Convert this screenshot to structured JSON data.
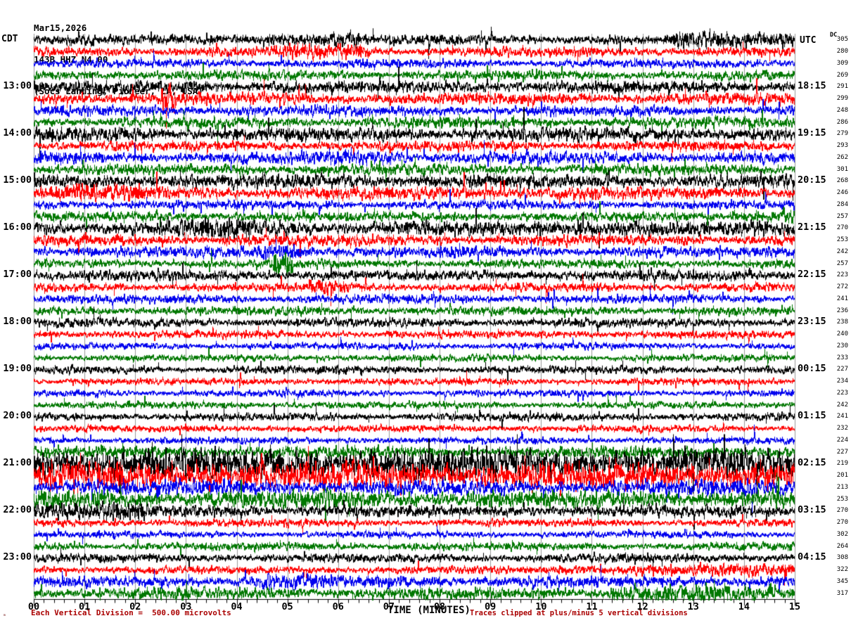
{
  "header": {
    "date": "Mar15,2026",
    "station": "143B HHZ N4 00",
    "location": "(Socs Landing, Pioneer, LA, USA)"
  },
  "timezones": {
    "left": "CDT",
    "right": "UTC"
  },
  "dc_column_header": "DC",
  "axis": {
    "title": "TIME (MINUTES)",
    "ticks": [
      "00",
      "01",
      "02",
      "03",
      "04",
      "05",
      "06",
      "07",
      "08",
      "09",
      "10",
      "11",
      "12",
      "13",
      "14",
      "15"
    ]
  },
  "footer": {
    "left_note": "Each Vertical Division =  500.00 microvolts",
    "right_note": "Traces clipped at plus/minus 5 vertical divisions",
    "corner_mark": "ₘ"
  },
  "colors": {
    "trace_cycle": [
      "#000000",
      "#ff0000",
      "#0000ee",
      "#007700"
    ],
    "grid": "#999999",
    "axis": "#000000",
    "note_red": "#aa0000",
    "background": "#ffffff"
  },
  "chart_data": {
    "type": "line",
    "subtype": "helicorder-seismogram",
    "title": "Mar15,2026 143B HHZ N4 00 (Socs Landing, Pioneer, LA, USA)",
    "xlabel": "TIME (MINUTES)",
    "x_range_minutes": [
      0,
      15
    ],
    "minutes_per_line": 15,
    "grid": true,
    "clip_divisions": 5,
    "microvolts_per_division": "500.00",
    "rows": [
      {
        "dc": 305,
        "amp": 5,
        "bursts": [
          {
            "s": 4.6,
            "e": 6.4,
            "a": 9
          },
          {
            "s": 12.6,
            "e": 15,
            "a": 9
          },
          {
            "s": 0,
            "e": 1.2,
            "a": 7
          }
        ]
      },
      {
        "dc": 280,
        "amp": 5,
        "bursts": [
          {
            "s": 4.9,
            "e": 6.6,
            "a": 8
          }
        ]
      },
      {
        "dc": 309,
        "amp": 4.5,
        "bursts": []
      },
      {
        "dc": 269,
        "amp": 5,
        "bursts": []
      },
      {
        "dc": 291,
        "amp": 6.5,
        "bursts": [],
        "cdt": "13:00",
        "utc": "18:15"
      },
      {
        "dc": 299,
        "amp": 6,
        "bursts": [
          {
            "s": 2.5,
            "e": 2.8,
            "a": 17
          }
        ]
      },
      {
        "dc": 248,
        "amp": 5.5,
        "bursts": []
      },
      {
        "dc": 286,
        "amp": 5.5,
        "bursts": []
      },
      {
        "dc": 279,
        "amp": 7,
        "bursts": [],
        "cdt": "14:00",
        "utc": "19:15"
      },
      {
        "dc": 293,
        "amp": 5,
        "bursts": []
      },
      {
        "dc": 262,
        "amp": 6,
        "bursts": [
          {
            "s": 5.8,
            "e": 7.3,
            "a": 9
          }
        ]
      },
      {
        "dc": 301,
        "amp": 5.5,
        "bursts": []
      },
      {
        "dc": 268,
        "amp": 7,
        "bursts": [],
        "cdt": "15:00",
        "utc": "20:15"
      },
      {
        "dc": 246,
        "amp": 6.5,
        "bursts": [
          {
            "s": 0.3,
            "e": 2.2,
            "a": 9
          }
        ]
      },
      {
        "dc": 284,
        "amp": 4.5,
        "bursts": []
      },
      {
        "dc": 257,
        "amp": 5,
        "bursts": [
          {
            "s": 13.7,
            "e": 15,
            "a": 9
          }
        ]
      },
      {
        "dc": 270,
        "amp": 7.5,
        "bursts": [
          {
            "s": 3.1,
            "e": 4.3,
            "a": 11
          },
          {
            "s": 10.7,
            "e": 12.3,
            "a": 10
          }
        ],
        "cdt": "16:00",
        "utc": "21:15"
      },
      {
        "dc": 253,
        "amp": 5.5,
        "bursts": []
      },
      {
        "dc": 242,
        "amp": 5.5,
        "bursts": [
          {
            "s": 4.4,
            "e": 5.6,
            "a": 9
          }
        ]
      },
      {
        "dc": 257,
        "amp": 4.5,
        "bursts": [
          {
            "s": 4.7,
            "e": 5.1,
            "a": 11
          }
        ]
      },
      {
        "dc": 223,
        "amp": 5.5,
        "bursts": [],
        "cdt": "17:00",
        "utc": "22:15"
      },
      {
        "dc": 272,
        "amp": 4.5,
        "bursts": [
          {
            "s": 5.4,
            "e": 6.2,
            "a": 8
          }
        ]
      },
      {
        "dc": 241,
        "amp": 4.5,
        "bursts": []
      },
      {
        "dc": 236,
        "amp": 4.5,
        "bursts": []
      },
      {
        "dc": 238,
        "amp": 4.5,
        "bursts": [],
        "cdt": "18:00",
        "utc": "23:15"
      },
      {
        "dc": 240,
        "amp": 4,
        "bursts": []
      },
      {
        "dc": 230,
        "amp": 3.5,
        "bursts": []
      },
      {
        "dc": 233,
        "amp": 3.5,
        "bursts": []
      },
      {
        "dc": 227,
        "amp": 4,
        "bursts": [],
        "cdt": "19:00",
        "utc": "00:15"
      },
      {
        "dc": 234,
        "amp": 3.5,
        "bursts": []
      },
      {
        "dc": 223,
        "amp": 3.5,
        "bursts": []
      },
      {
        "dc": 242,
        "amp": 3.5,
        "bursts": []
      },
      {
        "dc": 241,
        "amp": 4,
        "bursts": [],
        "cdt": "20:00",
        "utc": "01:15"
      },
      {
        "dc": 232,
        "amp": 3.5,
        "bursts": []
      },
      {
        "dc": 224,
        "amp": 3.5,
        "bursts": []
      },
      {
        "dc": 227,
        "amp": 6,
        "bursts": []
      },
      {
        "dc": 219,
        "amp": 16,
        "bursts": [],
        "cdt": "21:00",
        "utc": "02:15"
      },
      {
        "dc": 201,
        "amp": 15,
        "bursts": []
      },
      {
        "dc": 213,
        "amp": 8,
        "bursts": []
      },
      {
        "dc": 253,
        "amp": 9,
        "bursts": []
      },
      {
        "dc": 270,
        "amp": 6,
        "bursts": [
          {
            "s": 0,
            "e": 2.2,
            "a": 11
          }
        ],
        "cdt": "22:00",
        "utc": "03:15"
      },
      {
        "dc": 270,
        "amp": 4,
        "bursts": []
      },
      {
        "dc": 302,
        "amp": 3.5,
        "bursts": []
      },
      {
        "dc": 264,
        "amp": 4,
        "bursts": []
      },
      {
        "dc": 308,
        "amp": 4.5,
        "bursts": [],
        "cdt": "23:00",
        "utc": "04:15"
      },
      {
        "dc": 322,
        "amp": 4,
        "bursts": [
          {
            "s": 10.3,
            "e": 15,
            "a": 6.5
          }
        ]
      },
      {
        "dc": 345,
        "amp": 6,
        "bursts": [
          {
            "s": 4.5,
            "e": 6,
            "a": 8
          }
        ]
      },
      {
        "dc": 317,
        "amp": 6,
        "bursts": [
          {
            "s": 11.4,
            "e": 14.6,
            "a": 9
          }
        ]
      }
    ]
  }
}
